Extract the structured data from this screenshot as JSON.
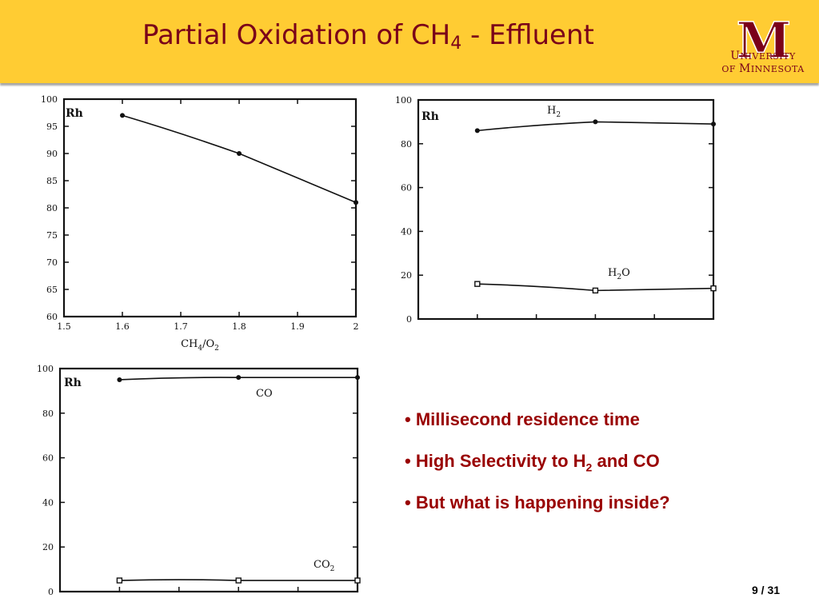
{
  "slide": {
    "title_main": "Partial Oxidation of CH",
    "title_sub": "4",
    "title_tail": " - Effluent",
    "logo_line1_cap1": "U",
    "logo_line1_rest": "NIVERSITY",
    "logo_line2_pre": "OF ",
    "logo_line2_cap": "M",
    "logo_line2_rest": "INNESOTA",
    "logo_mark": "M",
    "page": "9 / 31",
    "colors": {
      "header": "#ffcc33",
      "title": "#7a0019",
      "bullets": "#990000"
    }
  },
  "bullets": [
    {
      "text": "Millisecond residence time",
      "sub": "",
      "tail": ""
    },
    {
      "text": "High Selectivity to H",
      "sub": "2",
      "tail": " and CO"
    },
    {
      "text": "But what is happening inside?",
      "sub": "",
      "tail": ""
    }
  ],
  "chart_data": [
    {
      "type": "line",
      "label": "Rh",
      "xlabel_main": "CH",
      "xlabel_sub1": "4",
      "xlabel_mid": "/O",
      "xlabel_sub2": "2",
      "xlim": [
        1.5,
        2.0
      ],
      "ylim": [
        60,
        100
      ],
      "xticks": [
        "1.5",
        "1.6",
        "1.7",
        "1.8",
        "1.9",
        "2"
      ],
      "yticks": [
        "60",
        "65",
        "70",
        "75",
        "80",
        "85",
        "90",
        "95",
        "100"
      ],
      "series": [
        {
          "x": [
            1.6,
            1.8,
            2.0
          ],
          "y": [
            97,
            90,
            81
          ],
          "marker": "dot"
        }
      ]
    },
    {
      "type": "line",
      "label": "Rh",
      "xlim": [
        1.5,
        2.0
      ],
      "ylim": [
        0,
        100
      ],
      "yticks": [
        "0",
        "20",
        "40",
        "60",
        "80",
        "100"
      ],
      "series": [
        {
          "name": "H",
          "name_sub": "2",
          "x": [
            1.6,
            1.8,
            2.0
          ],
          "y": [
            86,
            90,
            89
          ],
          "marker": "dot"
        },
        {
          "name": "H",
          "name_sub": "2",
          "name_tail": "O",
          "x": [
            1.6,
            1.8,
            2.0
          ],
          "y": [
            16,
            13,
            14
          ],
          "marker": "square"
        }
      ]
    },
    {
      "type": "line",
      "label": "Rh",
      "xlim": [
        1.5,
        2.0
      ],
      "ylim": [
        0,
        100
      ],
      "yticks": [
        "0",
        "20",
        "40",
        "60",
        "80",
        "100"
      ],
      "series": [
        {
          "name": "CO",
          "x": [
            1.6,
            1.8,
            2.0
          ],
          "y": [
            95,
            96,
            96
          ],
          "marker": "dot"
        },
        {
          "name": "CO",
          "name_sub": "2",
          "x": [
            1.6,
            1.8,
            2.0
          ],
          "y": [
            5,
            5,
            5
          ],
          "marker": "square"
        }
      ]
    }
  ]
}
